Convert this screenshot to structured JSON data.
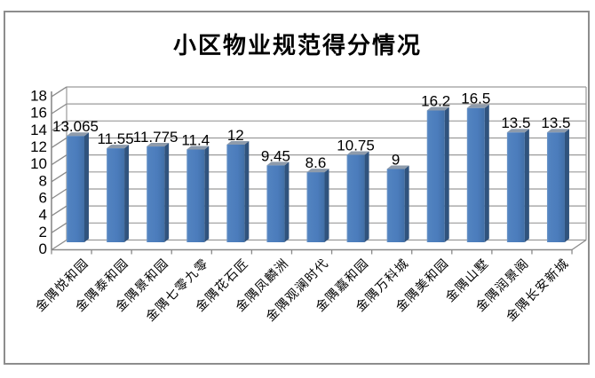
{
  "frame": {
    "border_color": "#8d8d8d",
    "background": "#ffffff"
  },
  "chart_data": {
    "type": "bar",
    "projection": "3d",
    "title": "小区物业规范得分情况",
    "categories": [
      "金隅悦和园",
      "金隅泰和园",
      "金隅景和园",
      "金隅七零九零",
      "金隅花石匠",
      "金隅凤麟洲",
      "金隅观澜时代",
      "金隅嘉和园",
      "金隅万科城",
      "金隅美和园",
      "金隅山墅",
      "金隅润景阁",
      "金隅长安新城"
    ],
    "values": [
      13.065,
      11.55,
      11.775,
      11.4,
      12,
      9.45,
      8.6,
      10.75,
      9,
      16.2,
      16.5,
      13.5,
      13.5
    ],
    "data_labels_shown": true,
    "xlabel": "",
    "ylabel": "",
    "ylim": [
      0,
      18
    ],
    "yticks": [
      0,
      2,
      4,
      6,
      8,
      10,
      12,
      14,
      16,
      18
    ],
    "grid": true,
    "legend": "none",
    "x_tick_label_rotation": 45,
    "colors": {
      "bar_front": "#4d7ebf",
      "bar_front_light": "#739bcb",
      "bar_front_dark": "#416fa6",
      "bar_side": "#30537d",
      "bar_top": "#8e9bab",
      "gridline": "#9a9a9a",
      "axis": "#8a8a8a",
      "text": "#000000"
    }
  }
}
